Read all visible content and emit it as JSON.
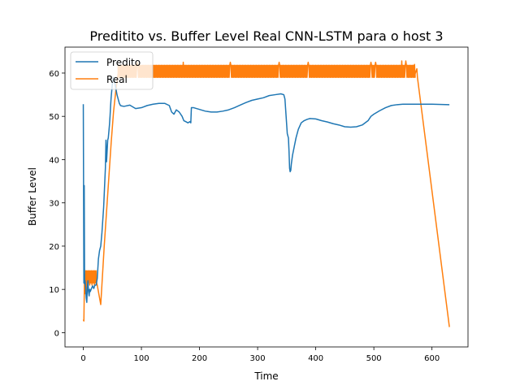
{
  "chart_data": {
    "type": "line",
    "title": "Preditito vs. Buffer Level Real CNN-LSTM para o host 3",
    "xlabel": "Time",
    "ylabel": "Buffer Level",
    "xlim": [
      -31.5,
      662
    ],
    "ylim": [
      -3.3,
      66
    ],
    "xticks": [
      0,
      100,
      200,
      300,
      400,
      500,
      600
    ],
    "yticks": [
      0,
      10,
      20,
      30,
      40,
      50,
      60
    ],
    "grid": false,
    "legend": "top-left",
    "series": [
      {
        "name": "Predito",
        "color": "#1f77b4",
        "points": [
          [
            0,
            52.8
          ],
          [
            1,
            11.5
          ],
          [
            1.6,
            34
          ],
          [
            2.2,
            11.3
          ],
          [
            3,
            12
          ],
          [
            4,
            10.5
          ],
          [
            5,
            8
          ],
          [
            6,
            7
          ],
          [
            7,
            10.5
          ],
          [
            8,
            12
          ],
          [
            9,
            9.5
          ],
          [
            10,
            8.5
          ],
          [
            11,
            10
          ],
          [
            12,
            9.5
          ],
          [
            14,
            10.2
          ],
          [
            16,
            10.8
          ],
          [
            18,
            10.2
          ],
          [
            20,
            11
          ],
          [
            22,
            11
          ],
          [
            24,
            12.5
          ],
          [
            26,
            17
          ],
          [
            28,
            19
          ],
          [
            30,
            20
          ],
          [
            32,
            23
          ],
          [
            34,
            27
          ],
          [
            35,
            29
          ],
          [
            36,
            32
          ],
          [
            37,
            35
          ],
          [
            38,
            38
          ],
          [
            39,
            44.5
          ],
          [
            39.5,
            42
          ],
          [
            40,
            39.5
          ],
          [
            41,
            42
          ],
          [
            42,
            44.5
          ],
          [
            43,
            45
          ],
          [
            44,
            46.5
          ],
          [
            45,
            48
          ],
          [
            46,
            50
          ],
          [
            47,
            52.5
          ],
          [
            48,
            54.5
          ],
          [
            49,
            56
          ],
          [
            50,
            57.5
          ],
          [
            51,
            58.5
          ],
          [
            52,
            59
          ],
          [
            54,
            58
          ],
          [
            56,
            56.5
          ],
          [
            58,
            55
          ],
          [
            60,
            54
          ],
          [
            62,
            53
          ],
          [
            64,
            52.5
          ],
          [
            66,
            52.4
          ],
          [
            70,
            52.3
          ],
          [
            80,
            52.6
          ],
          [
            90,
            51.8
          ],
          [
            100,
            52
          ],
          [
            110,
            52.5
          ],
          [
            120,
            52.8
          ],
          [
            130,
            53
          ],
          [
            140,
            53
          ],
          [
            148,
            52.5
          ],
          [
            152,
            51
          ],
          [
            156,
            50.5
          ],
          [
            160,
            51.5
          ],
          [
            165,
            51
          ],
          [
            170,
            50
          ],
          [
            173,
            49
          ],
          [
            176,
            48.8
          ],
          [
            180,
            48.5
          ],
          [
            184,
            48.8
          ],
          [
            185,
            48.5
          ],
          [
            186,
            52
          ],
          [
            190,
            52
          ],
          [
            200,
            51.6
          ],
          [
            210,
            51.2
          ],
          [
            220,
            51
          ],
          [
            230,
            51
          ],
          [
            240,
            51.2
          ],
          [
            250,
            51.5
          ],
          [
            260,
            52
          ],
          [
            270,
            52.6
          ],
          [
            280,
            53.2
          ],
          [
            290,
            53.7
          ],
          [
            300,
            54
          ],
          [
            310,
            54.3
          ],
          [
            320,
            54.8
          ],
          [
            330,
            55
          ],
          [
            340,
            55.2
          ],
          [
            345,
            55
          ],
          [
            347,
            54
          ],
          [
            349,
            50
          ],
          [
            351,
            46
          ],
          [
            353,
            45
          ],
          [
            354,
            42
          ],
          [
            355,
            38
          ],
          [
            356,
            37.2
          ],
          [
            357,
            37.5
          ],
          [
            358,
            39
          ],
          [
            360,
            41
          ],
          [
            363,
            43
          ],
          [
            366,
            45
          ],
          [
            370,
            47
          ],
          [
            375,
            48.5
          ],
          [
            380,
            49
          ],
          [
            385,
            49.3
          ],
          [
            390,
            49.5
          ],
          [
            400,
            49.4
          ],
          [
            410,
            49
          ],
          [
            420,
            48.7
          ],
          [
            430,
            48.3
          ],
          [
            440,
            48
          ],
          [
            450,
            47.6
          ],
          [
            460,
            47.5
          ],
          [
            470,
            47.6
          ],
          [
            480,
            48
          ],
          [
            490,
            49
          ],
          [
            495,
            50
          ],
          [
            500,
            50.5
          ],
          [
            510,
            51.3
          ],
          [
            520,
            52
          ],
          [
            530,
            52.5
          ],
          [
            540,
            52.7
          ],
          [
            550,
            52.8
          ],
          [
            570,
            52.8
          ],
          [
            600,
            52.8
          ],
          [
            630,
            52.7
          ]
        ]
      },
      {
        "name": "Real",
        "color": "#ff7f0e",
        "points": [
          [
            0,
            3
          ],
          [
            1,
            2.7
          ],
          [
            2,
            12.5
          ],
          [
            3,
            9
          ],
          [
            4,
            14.3
          ],
          [
            5,
            9.5
          ],
          [
            6,
            14.3
          ],
          [
            7,
            11
          ],
          [
            8,
            14.3
          ],
          [
            9,
            11.5
          ],
          [
            10,
            14.3
          ],
          [
            11,
            11
          ],
          [
            12,
            14.3
          ],
          [
            13,
            11.5
          ],
          [
            14,
            14.3
          ],
          [
            15,
            11
          ],
          [
            16,
            14.3
          ],
          [
            17,
            11.5
          ],
          [
            18,
            14.3
          ],
          [
            19,
            11
          ],
          [
            20,
            14.3
          ],
          [
            21,
            11.5
          ],
          [
            22,
            14.3
          ],
          [
            23,
            11.5
          ],
          [
            24,
            11
          ],
          [
            30,
            6.5
          ],
          [
            32,
            11
          ],
          [
            36,
            20
          ],
          [
            40,
            28
          ],
          [
            44,
            36
          ],
          [
            48,
            44
          ],
          [
            52,
            51
          ],
          [
            56,
            56
          ],
          [
            60,
            60
          ]
        ],
        "band": {
          "x_start": 60,
          "x_end": 571,
          "low": 59,
          "high": 61.8,
          "spikes": [
            [
              93,
              62.5
            ],
            [
              172,
              62.5
            ],
            [
              253,
              62.5
            ],
            [
              337,
              62.5
            ],
            [
              387,
              62.5
            ],
            [
              495,
              62.5
            ],
            [
              503,
              62.5
            ],
            [
              548,
              62.8
            ],
            [
              555,
              62.8
            ],
            [
              570,
              62
            ]
          ]
        },
        "tail": [
          [
            571,
            59.8
          ],
          [
            574,
            61
          ],
          [
            575,
            59
          ],
          [
            630,
            1.3
          ]
        ]
      }
    ]
  }
}
